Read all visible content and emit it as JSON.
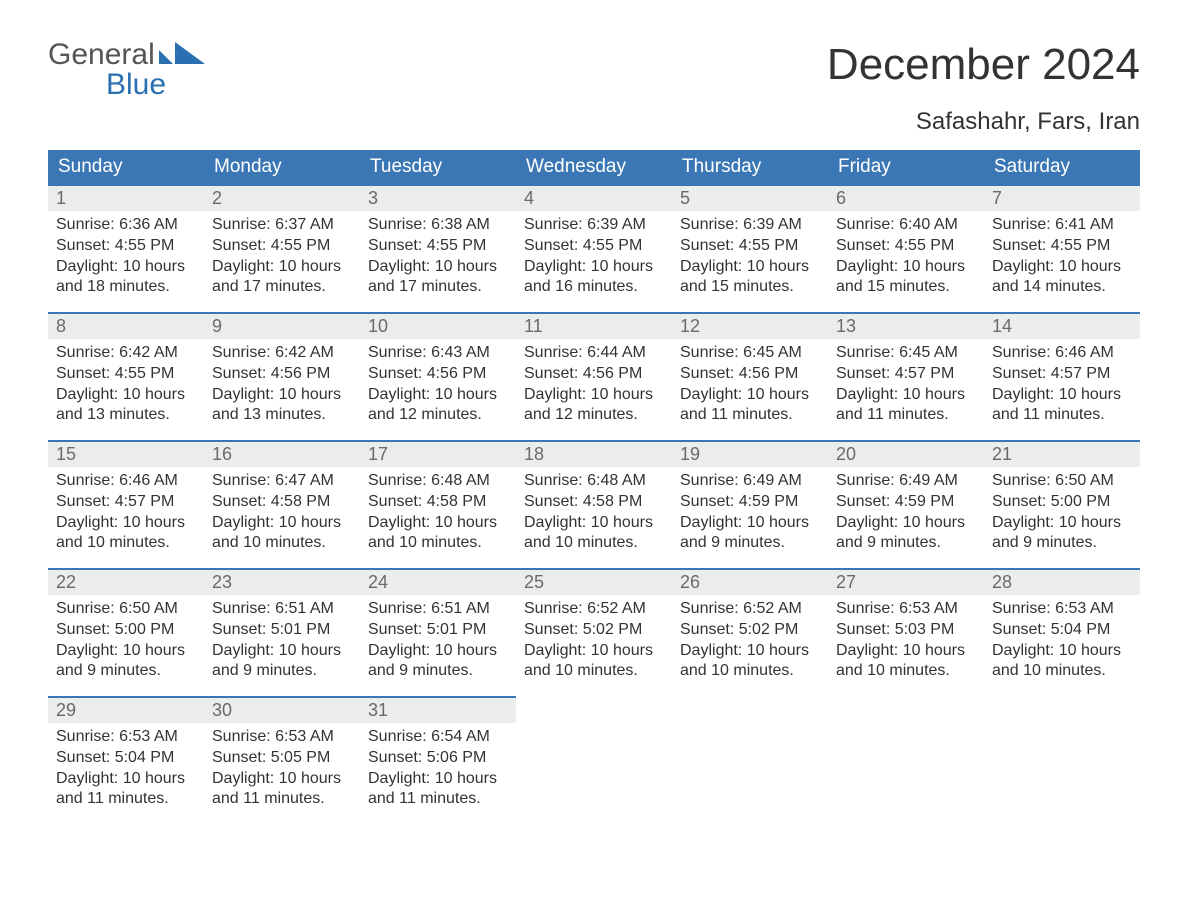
{
  "logo": {
    "line1": "General",
    "line2": "Blue",
    "shape_color": "#2a6fb0",
    "text_gray": "#555555"
  },
  "header": {
    "title": "December 2024",
    "subtitle": "Safashahr, Fars, Iran"
  },
  "styling": {
    "page_bg": "#ffffff",
    "text_color": "#333333",
    "header_bar_bg": "#3b77b5",
    "header_bar_text": "#ffffff",
    "day_head_bg": "#ececec",
    "day_head_text": "#6a6a6a",
    "day_top_border": "#3b77b5",
    "title_fontsize": 44,
    "subtitle_fontsize": 24,
    "weekday_fontsize": 19,
    "daynum_fontsize": 18,
    "body_fontsize": 16
  },
  "weekdays": [
    "Sunday",
    "Monday",
    "Tuesday",
    "Wednesday",
    "Thursday",
    "Friday",
    "Saturday"
  ],
  "grid": {
    "rows": 5,
    "cols": 7,
    "start_offset": 0,
    "days_in_month": 31
  },
  "days": [
    {
      "n": 1,
      "sunrise": "6:36 AM",
      "sunset": "4:55 PM",
      "daylight": "10 hours and 18 minutes."
    },
    {
      "n": 2,
      "sunrise": "6:37 AM",
      "sunset": "4:55 PM",
      "daylight": "10 hours and 17 minutes."
    },
    {
      "n": 3,
      "sunrise": "6:38 AM",
      "sunset": "4:55 PM",
      "daylight": "10 hours and 17 minutes."
    },
    {
      "n": 4,
      "sunrise": "6:39 AM",
      "sunset": "4:55 PM",
      "daylight": "10 hours and 16 minutes."
    },
    {
      "n": 5,
      "sunrise": "6:39 AM",
      "sunset": "4:55 PM",
      "daylight": "10 hours and 15 minutes."
    },
    {
      "n": 6,
      "sunrise": "6:40 AM",
      "sunset": "4:55 PM",
      "daylight": "10 hours and 15 minutes."
    },
    {
      "n": 7,
      "sunrise": "6:41 AM",
      "sunset": "4:55 PM",
      "daylight": "10 hours and 14 minutes."
    },
    {
      "n": 8,
      "sunrise": "6:42 AM",
      "sunset": "4:55 PM",
      "daylight": "10 hours and 13 minutes."
    },
    {
      "n": 9,
      "sunrise": "6:42 AM",
      "sunset": "4:56 PM",
      "daylight": "10 hours and 13 minutes."
    },
    {
      "n": 10,
      "sunrise": "6:43 AM",
      "sunset": "4:56 PM",
      "daylight": "10 hours and 12 minutes."
    },
    {
      "n": 11,
      "sunrise": "6:44 AM",
      "sunset": "4:56 PM",
      "daylight": "10 hours and 12 minutes."
    },
    {
      "n": 12,
      "sunrise": "6:45 AM",
      "sunset": "4:56 PM",
      "daylight": "10 hours and 11 minutes."
    },
    {
      "n": 13,
      "sunrise": "6:45 AM",
      "sunset": "4:57 PM",
      "daylight": "10 hours and 11 minutes."
    },
    {
      "n": 14,
      "sunrise": "6:46 AM",
      "sunset": "4:57 PM",
      "daylight": "10 hours and 11 minutes."
    },
    {
      "n": 15,
      "sunrise": "6:46 AM",
      "sunset": "4:57 PM",
      "daylight": "10 hours and 10 minutes."
    },
    {
      "n": 16,
      "sunrise": "6:47 AM",
      "sunset": "4:58 PM",
      "daylight": "10 hours and 10 minutes."
    },
    {
      "n": 17,
      "sunrise": "6:48 AM",
      "sunset": "4:58 PM",
      "daylight": "10 hours and 10 minutes."
    },
    {
      "n": 18,
      "sunrise": "6:48 AM",
      "sunset": "4:58 PM",
      "daylight": "10 hours and 10 minutes."
    },
    {
      "n": 19,
      "sunrise": "6:49 AM",
      "sunset": "4:59 PM",
      "daylight": "10 hours and 9 minutes."
    },
    {
      "n": 20,
      "sunrise": "6:49 AM",
      "sunset": "4:59 PM",
      "daylight": "10 hours and 9 minutes."
    },
    {
      "n": 21,
      "sunrise": "6:50 AM",
      "sunset": "5:00 PM",
      "daylight": "10 hours and 9 minutes."
    },
    {
      "n": 22,
      "sunrise": "6:50 AM",
      "sunset": "5:00 PM",
      "daylight": "10 hours and 9 minutes."
    },
    {
      "n": 23,
      "sunrise": "6:51 AM",
      "sunset": "5:01 PM",
      "daylight": "10 hours and 9 minutes."
    },
    {
      "n": 24,
      "sunrise": "6:51 AM",
      "sunset": "5:01 PM",
      "daylight": "10 hours and 9 minutes."
    },
    {
      "n": 25,
      "sunrise": "6:52 AM",
      "sunset": "5:02 PM",
      "daylight": "10 hours and 10 minutes."
    },
    {
      "n": 26,
      "sunrise": "6:52 AM",
      "sunset": "5:02 PM",
      "daylight": "10 hours and 10 minutes."
    },
    {
      "n": 27,
      "sunrise": "6:53 AM",
      "sunset": "5:03 PM",
      "daylight": "10 hours and 10 minutes."
    },
    {
      "n": 28,
      "sunrise": "6:53 AM",
      "sunset": "5:04 PM",
      "daylight": "10 hours and 10 minutes."
    },
    {
      "n": 29,
      "sunrise": "6:53 AM",
      "sunset": "5:04 PM",
      "daylight": "10 hours and 11 minutes."
    },
    {
      "n": 30,
      "sunrise": "6:53 AM",
      "sunset": "5:05 PM",
      "daylight": "10 hours and 11 minutes."
    },
    {
      "n": 31,
      "sunrise": "6:54 AM",
      "sunset": "5:06 PM",
      "daylight": "10 hours and 11 minutes."
    }
  ],
  "labels": {
    "sunrise": "Sunrise: ",
    "sunset": "Sunset: ",
    "daylight": "Daylight: "
  }
}
